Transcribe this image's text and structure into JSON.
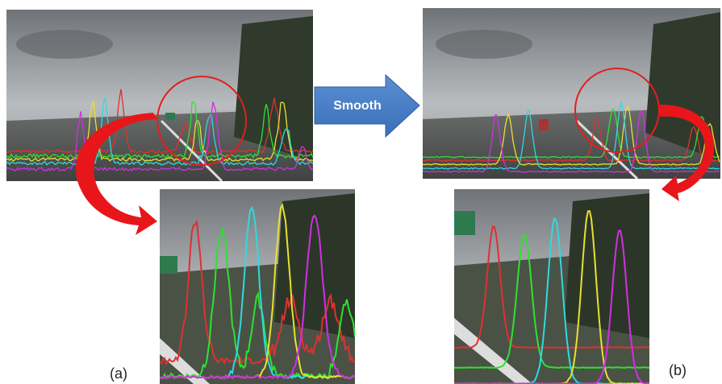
{
  "labels": {
    "arrow": "Smooth",
    "left": "(a)",
    "right": "(b)"
  }
}
